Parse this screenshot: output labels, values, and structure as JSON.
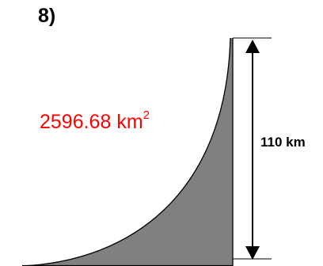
{
  "problem": {
    "number_label": "8)"
  },
  "region": {
    "area_value": "2596.68 km",
    "area_exponent": "2",
    "fill_color": "#808080",
    "label_color": "#ff0000"
  },
  "dimension": {
    "height_label": "110 km"
  }
}
